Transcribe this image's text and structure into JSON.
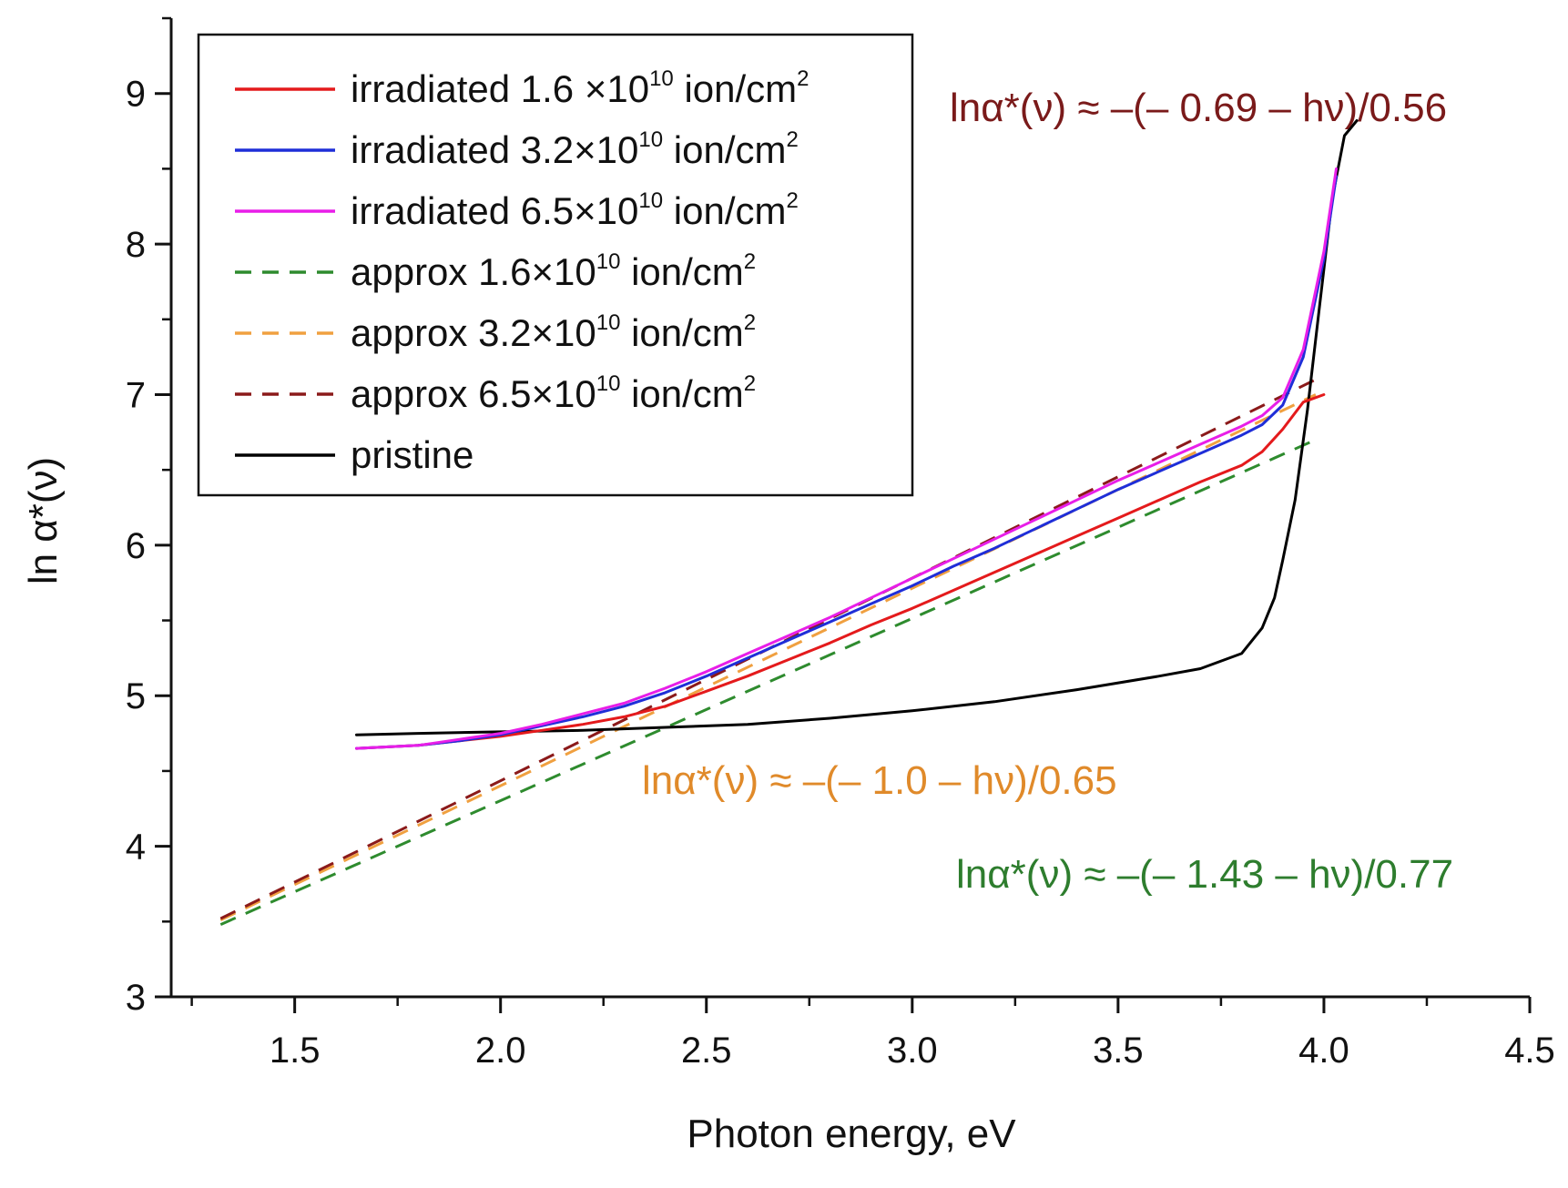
{
  "chart_data": {
    "type": "line",
    "title": "",
    "xlabel": "Photon energy, eV",
    "ylabel": "ln α*(ν)",
    "xlim": [
      1.2,
      4.5
    ],
    "ylim": [
      3,
      9.5
    ],
    "xticks": [
      1.5,
      2.0,
      2.5,
      3.0,
      3.5,
      4.0,
      4.5
    ],
    "xtick_labels": [
      "1.5",
      "2.0",
      "2.5",
      "3.0",
      "3.5",
      "4.0",
      "4.5"
    ],
    "yticks": [
      3,
      4,
      5,
      6,
      7,
      8,
      9
    ],
    "ytick_labels": [
      "3",
      "4",
      "5",
      "6",
      "7",
      "8",
      "9"
    ],
    "legend_position": "top-left",
    "series": [
      {
        "name": "irradiated 1.6 ×10",
        "sup": "10",
        "unit": "ion/cm",
        "unit_sup": "2",
        "color": "#e41a1c",
        "style": "solid",
        "x": [
          1.65,
          1.8,
          1.9,
          2.0,
          2.1,
          2.2,
          2.3,
          2.4,
          2.5,
          2.6,
          2.7,
          2.8,
          2.9,
          3.0,
          3.1,
          3.2,
          3.3,
          3.4,
          3.5,
          3.6,
          3.7,
          3.8,
          3.85,
          3.9,
          3.95,
          4.0
        ],
        "y": [
          4.65,
          4.67,
          4.7,
          4.73,
          4.77,
          4.81,
          4.86,
          4.93,
          5.03,
          5.13,
          5.24,
          5.35,
          5.47,
          5.58,
          5.7,
          5.82,
          5.94,
          6.06,
          6.18,
          6.3,
          6.42,
          6.53,
          6.62,
          6.77,
          6.95,
          7.0
        ]
      },
      {
        "name": "irradiated 3.2×10",
        "sup": "10",
        "unit": "ion/cm",
        "unit_sup": "2",
        "color": "#1f2ed8",
        "style": "solid",
        "x": [
          1.65,
          1.8,
          1.9,
          2.0,
          2.1,
          2.2,
          2.3,
          2.4,
          2.5,
          2.6,
          2.7,
          2.8,
          2.9,
          3.0,
          3.1,
          3.2,
          3.3,
          3.4,
          3.5,
          3.6,
          3.7,
          3.8,
          3.85,
          3.9,
          3.95,
          4.0,
          4.03
        ],
        "y": [
          4.65,
          4.67,
          4.7,
          4.74,
          4.8,
          4.86,
          4.93,
          5.02,
          5.13,
          5.25,
          5.37,
          5.49,
          5.61,
          5.73,
          5.86,
          5.98,
          6.11,
          6.24,
          6.37,
          6.49,
          6.61,
          6.73,
          6.8,
          6.93,
          7.25,
          7.9,
          8.45
        ]
      },
      {
        "name": "irradiated 6.5×10",
        "sup": "10",
        "unit": "ion/cm",
        "unit_sup": "2",
        "color": "#e81ee8",
        "style": "solid",
        "x": [
          1.65,
          1.8,
          1.9,
          2.0,
          2.1,
          2.2,
          2.3,
          2.4,
          2.5,
          2.6,
          2.7,
          2.8,
          2.9,
          3.0,
          3.1,
          3.2,
          3.3,
          3.4,
          3.5,
          3.6,
          3.7,
          3.8,
          3.85,
          3.9,
          3.95,
          4.0,
          4.03
        ],
        "y": [
          4.65,
          4.67,
          4.71,
          4.75,
          4.81,
          4.88,
          4.95,
          5.05,
          5.16,
          5.28,
          5.4,
          5.52,
          5.65,
          5.78,
          5.91,
          6.04,
          6.17,
          6.3,
          6.43,
          6.55,
          6.67,
          6.79,
          6.86,
          6.98,
          7.3,
          7.95,
          8.5
        ]
      },
      {
        "name": "approx  1.6×10",
        "sup": "10",
        "unit": "ion/cm",
        "unit_sup": "2",
        "color": "#2e8b2e",
        "style": "dashed",
        "x": [
          1.32,
          3.98
        ],
        "y": [
          3.48,
          6.7
        ]
      },
      {
        "name": "approx  3.2×10",
        "sup": "10",
        "unit": "ion/cm",
        "unit_sup": "2",
        "color": "#f0a040",
        "style": "dashed",
        "x": [
          1.32,
          3.98
        ],
        "y": [
          3.51,
          7.0
        ]
      },
      {
        "name": "approx  6.5×10",
        "sup": "10",
        "unit": "ion/cm",
        "unit_sup": "2",
        "color": "#8b1a1a",
        "style": "dashed",
        "x": [
          1.32,
          3.98
        ],
        "y": [
          3.52,
          7.1
        ]
      },
      {
        "name": "pristine",
        "sup": "",
        "unit": "",
        "unit_sup": "",
        "color": "#000000",
        "style": "solid",
        "x": [
          1.65,
          1.8,
          2.0,
          2.2,
          2.4,
          2.6,
          2.8,
          3.0,
          3.2,
          3.4,
          3.6,
          3.7,
          3.8,
          3.85,
          3.88,
          3.9,
          3.93,
          3.96,
          3.99,
          4.02,
          4.05,
          4.08
        ],
        "y": [
          4.74,
          4.75,
          4.76,
          4.77,
          4.79,
          4.81,
          4.85,
          4.9,
          4.96,
          5.04,
          5.13,
          5.18,
          5.28,
          5.45,
          5.65,
          5.9,
          6.3,
          6.9,
          7.6,
          8.3,
          8.72,
          8.82
        ]
      }
    ],
    "annotations": [
      {
        "text": "lnα*(ν) ≈ –(– 0.69 – hν)/0.56",
        "color": "#7a1a1a"
      },
      {
        "text": "lnα*(ν) ≈ –(– 1.0 – hν)/0.65",
        "color": "#e08a2a"
      },
      {
        "text": "lnα*(ν) ≈ –(– 1.43 – hν)/0.77",
        "color": "#2e7d2e"
      }
    ]
  }
}
